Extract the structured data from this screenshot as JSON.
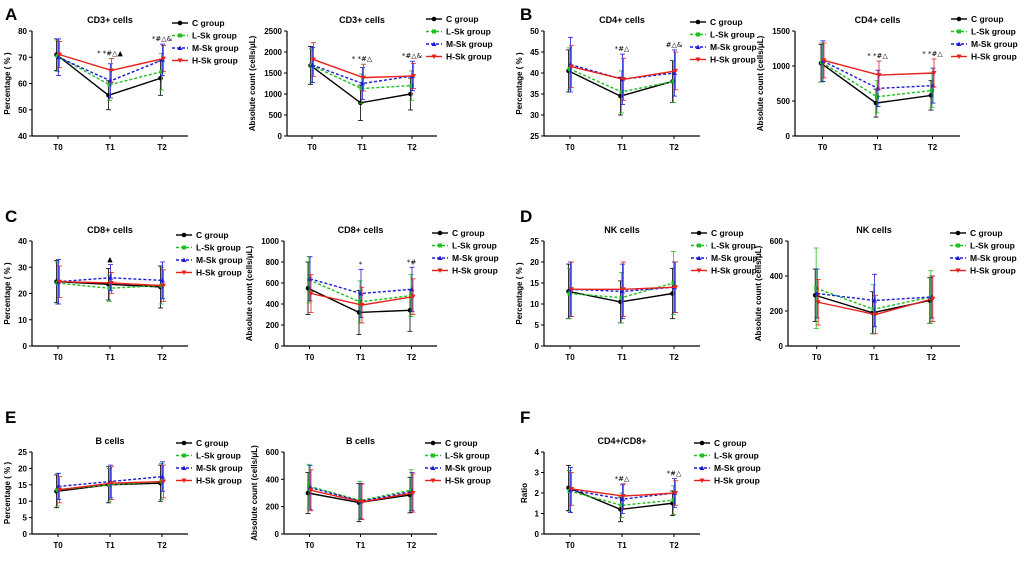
{
  "colors": {
    "C": "#000000",
    "L": "#1fbf1f",
    "M": "#1a1ad6",
    "H": "#e8201a"
  },
  "legend": [
    {
      "key": "C",
      "label": "C  group",
      "dash": ""
    },
    {
      "key": "L",
      "label": "L-Sk group",
      "dash": "3,2"
    },
    {
      "key": "M",
      "label": "M-Sk group",
      "dash": "3,2"
    },
    {
      "key": "H",
      "label": "H-Sk group",
      "dash": ""
    }
  ],
  "panel_labels": [
    "A",
    "B",
    "C",
    "D",
    "E",
    "F"
  ],
  "chart_data": [
    {
      "id": "A1",
      "type": "line",
      "title": "CD3+  cells",
      "ylabel": "Percentage ( % )",
      "xlabel": "",
      "categories": [
        "T0",
        "T1",
        "T2"
      ],
      "ylim": [
        40,
        80
      ],
      "yticks": [
        40,
        50,
        60,
        70,
        80
      ],
      "series": [
        {
          "name": "C  group",
          "key": "C",
          "values": [
            71,
            55.5,
            62
          ],
          "err": [
            6,
            5.5,
            6.5
          ]
        },
        {
          "name": "L-Sk group",
          "key": "L",
          "values": [
            70.5,
            59.5,
            64.5
          ],
          "err": [
            6,
            6,
            7
          ]
        },
        {
          "name": "M-Sk group",
          "key": "M",
          "values": [
            70,
            61,
            69
          ],
          "err": [
            7,
            6.5,
            6
          ]
        },
        {
          "name": "H-Sk group",
          "key": "H",
          "values": [
            71,
            65,
            69.5
          ],
          "err": [
            5,
            4.5,
            5
          ]
        }
      ],
      "annotations": [
        "",
        "* *#△▲",
        "*#△&"
      ]
    },
    {
      "id": "A2",
      "type": "line",
      "title": "CD3+  cells",
      "ylabel": "Absolute count (cells/μL)",
      "xlabel": "",
      "categories": [
        "T0",
        "T1",
        "T2"
      ],
      "ylim": [
        0,
        2500
      ],
      "yticks": [
        0,
        500,
        1000,
        1500,
        2000,
        2500
      ],
      "series": [
        {
          "name": "C  group",
          "key": "C",
          "values": [
            1680,
            790,
            1000
          ],
          "err": [
            450,
            420,
            380
          ]
        },
        {
          "name": "L-Sk group",
          "key": "L",
          "values": [
            1680,
            1130,
            1200
          ],
          "err": [
            400,
            350,
            350
          ]
        },
        {
          "name": "M-Sk group",
          "key": "M",
          "values": [
            1690,
            1250,
            1430
          ],
          "err": [
            420,
            380,
            350
          ]
        },
        {
          "name": "H-Sk group",
          "key": "H",
          "values": [
            1820,
            1390,
            1430
          ],
          "err": [
            400,
            320,
            300
          ]
        }
      ],
      "annotations": [
        "",
        "* *#△",
        "*#△&"
      ]
    },
    {
      "id": "B1",
      "type": "line",
      "title": "CD4+  cells",
      "ylabel": "Percentage ( % )",
      "xlabel": "",
      "categories": [
        "T0",
        "T1",
        "T2"
      ],
      "ylim": [
        25,
        50
      ],
      "yticks": [
        25,
        30,
        35,
        40,
        45,
        50
      ],
      "series": [
        {
          "name": "C  group",
          "key": "C",
          "values": [
            40.5,
            34.5,
            38
          ],
          "err": [
            5,
            4.5,
            5
          ]
        },
        {
          "name": "L-Sk group",
          "key": "L",
          "values": [
            41,
            35.5,
            38
          ],
          "err": [
            5,
            5,
            5
          ]
        },
        {
          "name": "M-Sk group",
          "key": "M",
          "values": [
            42,
            38.5,
            40
          ],
          "err": [
            6.5,
            6,
            5.5
          ]
        },
        {
          "name": "H-Sk group",
          "key": "H",
          "values": [
            41.5,
            38.5,
            40.5
          ],
          "err": [
            5,
            5,
            4.5
          ]
        }
      ],
      "annotations": [
        "",
        "*#△",
        "#△&"
      ]
    },
    {
      "id": "B2",
      "type": "line",
      "title": "CD4+  cells",
      "ylabel": "Absolute count (cells/μL)",
      "xlabel": "",
      "categories": [
        "T0",
        "T1",
        "T2"
      ],
      "ylim": [
        0,
        1500
      ],
      "yticks": [
        0,
        500,
        1000,
        1500
      ],
      "series": [
        {
          "name": "C  group",
          "key": "C",
          "values": [
            1040,
            470,
            580
          ],
          "err": [
            270,
            200,
            210
          ]
        },
        {
          "name": "L-Sk group",
          "key": "L",
          "values": [
            1050,
            560,
            650
          ],
          "err": [
            280,
            230,
            240
          ]
        },
        {
          "name": "M-Sk group",
          "key": "M",
          "values": [
            1070,
            680,
            720
          ],
          "err": [
            290,
            260,
            250
          ]
        },
        {
          "name": "H-Sk group",
          "key": "H",
          "values": [
            1080,
            870,
            900
          ],
          "err": [
            250,
            200,
            200
          ]
        }
      ],
      "annotations": [
        "",
        "* *#△",
        "* *#△"
      ]
    },
    {
      "id": "C1",
      "type": "line",
      "title": "CD8+  cells",
      "ylabel": "Percentage ( % )",
      "xlabel": "",
      "categories": [
        "T0",
        "T1",
        "T2"
      ],
      "ylim": [
        0,
        40
      ],
      "yticks": [
        0,
        10,
        20,
        30,
        40
      ],
      "series": [
        {
          "name": "C  group",
          "key": "C",
          "values": [
            24.5,
            23.5,
            22.5
          ],
          "err": [
            8,
            6,
            8
          ]
        },
        {
          "name": "L-Sk group",
          "key": "L",
          "values": [
            24,
            22,
            23
          ],
          "err": [
            8,
            5,
            7
          ]
        },
        {
          "name": "M-Sk group",
          "key": "M",
          "values": [
            24.5,
            26,
            25
          ],
          "err": [
            8.5,
            5,
            7
          ]
        },
        {
          "name": "H-Sk group",
          "key": "H",
          "values": [
            24.5,
            24,
            23
          ],
          "err": [
            6,
            4,
            6
          ]
        }
      ],
      "annotations": [
        "",
        "▲",
        ""
      ]
    },
    {
      "id": "C2",
      "type": "line",
      "title": "CD8+  cells",
      "ylabel": "Absolute count (cells/μL)",
      "xlabel": "",
      "categories": [
        "T0",
        "T1",
        "T2"
      ],
      "ylim": [
        0,
        1000
      ],
      "yticks": [
        0,
        200,
        400,
        600,
        800,
        1000
      ],
      "series": [
        {
          "name": "C  group",
          "key": "C",
          "values": [
            550,
            320,
            340
          ],
          "err": [
            250,
            210,
            200
          ]
        },
        {
          "name": "L-Sk group",
          "key": "L",
          "values": [
            630,
            420,
            480
          ],
          "err": [
            220,
            200,
            200
          ]
        },
        {
          "name": "M-Sk group",
          "key": "M",
          "values": [
            640,
            500,
            540
          ],
          "err": [
            210,
            230,
            210
          ]
        },
        {
          "name": "H-Sk group",
          "key": "H",
          "values": [
            500,
            390,
            470
          ],
          "err": [
            180,
            170,
            170
          ]
        }
      ],
      "annotations": [
        "",
        "*",
        "*#"
      ]
    },
    {
      "id": "D1",
      "type": "line",
      "title": "NK  cells",
      "ylabel": "Percentage ( % )",
      "xlabel": "",
      "categories": [
        "T0",
        "T1",
        "T2"
      ],
      "ylim": [
        0,
        25
      ],
      "yticks": [
        0,
        5,
        10,
        15,
        20,
        25
      ],
      "series": [
        {
          "name": "C  group",
          "key": "C",
          "values": [
            13,
            10.5,
            12.5
          ],
          "err": [
            6.5,
            5,
            6
          ]
        },
        {
          "name": "L-Sk group",
          "key": "L",
          "values": [
            12.5,
            11.5,
            15
          ],
          "err": [
            6,
            6,
            7.5
          ]
        },
        {
          "name": "M-Sk group",
          "key": "M",
          "values": [
            13.5,
            13,
            14
          ],
          "err": [
            6.5,
            6.5,
            6
          ]
        },
        {
          "name": "H-Sk group",
          "key": "H",
          "values": [
            13.5,
            13.5,
            14
          ],
          "err": [
            6.5,
            6.5,
            6
          ]
        }
      ],
      "annotations": [
        "",
        "",
        ""
      ]
    },
    {
      "id": "D2",
      "type": "line",
      "title": "NK  cells",
      "ylabel": "Absolute count (cells/μL)",
      "xlabel": "",
      "categories": [
        "T0",
        "T1",
        "T2"
      ],
      "ylim": [
        0,
        600
      ],
      "yticks": [
        0,
        200,
        400,
        600
      ],
      "series": [
        {
          "name": "C  group",
          "key": "C",
          "values": [
            290,
            190,
            260
          ],
          "err": [
            150,
            120,
            130
          ]
        },
        {
          "name": "L-Sk group",
          "key": "L",
          "values": [
            330,
            210,
            280
          ],
          "err": [
            230,
            140,
            150
          ]
        },
        {
          "name": "M-Sk group",
          "key": "M",
          "values": [
            300,
            260,
            280
          ],
          "err": [
            140,
            150,
            120
          ]
        },
        {
          "name": "H-Sk group",
          "key": "H",
          "values": [
            250,
            180,
            270
          ],
          "err": [
            130,
            110,
            130
          ]
        }
      ],
      "annotations": [
        "",
        "",
        ""
      ]
    },
    {
      "id": "E1",
      "type": "line",
      "title": "B  cells",
      "ylabel": "Percentage ( % )",
      "xlabel": "",
      "categories": [
        "T0",
        "T1",
        "T2"
      ],
      "ylim": [
        0,
        25
      ],
      "yticks": [
        0,
        5,
        10,
        15,
        20,
        25
      ],
      "series": [
        {
          "name": "C  group",
          "key": "C",
          "values": [
            13,
            15,
            15.5
          ],
          "err": [
            5,
            5.5,
            5.5
          ]
        },
        {
          "name": "L-Sk group",
          "key": "L",
          "values": [
            13.5,
            15,
            16
          ],
          "err": [
            5,
            5,
            5.5
          ]
        },
        {
          "name": "M-Sk group",
          "key": "M",
          "values": [
            14.5,
            16,
            17.5
          ],
          "err": [
            4,
            5,
            4.5
          ]
        },
        {
          "name": "H-Sk group",
          "key": "H",
          "values": [
            13.5,
            15.5,
            16
          ],
          "err": [
            4,
            5,
            5
          ]
        }
      ],
      "annotations": [
        "",
        "",
        ""
      ]
    },
    {
      "id": "E2",
      "type": "line",
      "title": "B  cells",
      "ylabel": "Absolute count (cells/μL)",
      "xlabel": "",
      "categories": [
        "T0",
        "T1",
        "T2"
      ],
      "ylim": [
        0,
        600
      ],
      "yticks": [
        0,
        200,
        400,
        600
      ],
      "series": [
        {
          "name": "C  group",
          "key": "C",
          "values": [
            300,
            230,
            285
          ],
          "err": [
            150,
            140,
            130
          ]
        },
        {
          "name": "L-Sk group",
          "key": "L",
          "values": [
            350,
            245,
            320
          ],
          "err": [
            160,
            140,
            150
          ]
        },
        {
          "name": "M-Sk group",
          "key": "M",
          "values": [
            340,
            240,
            310
          ],
          "err": [
            160,
            130,
            140
          ]
        },
        {
          "name": "H-Sk group",
          "key": "H",
          "values": [
            320,
            235,
            300
          ],
          "err": [
            150,
            130,
            140
          ]
        }
      ],
      "annotations": [
        "",
        "",
        ""
      ]
    },
    {
      "id": "F1",
      "type": "line",
      "title": "CD4+/CD8+",
      "ylabel": "Ratio",
      "xlabel": "",
      "categories": [
        "T0",
        "T1",
        "T2"
      ],
      "ylim": [
        0,
        4
      ],
      "yticks": [
        0,
        1,
        2,
        3,
        4
      ],
      "series": [
        {
          "name": "C  group",
          "key": "C",
          "values": [
            2.25,
            1.2,
            1.5
          ],
          "err": [
            1.1,
            0.6,
            0.6
          ]
        },
        {
          "name": "L-Sk group",
          "key": "L",
          "values": [
            2.1,
            1.4,
            1.65
          ],
          "err": [
            1,
            0.6,
            0.7
          ]
        },
        {
          "name": "M-Sk group",
          "key": "M",
          "values": [
            2.15,
            1.7,
            2
          ],
          "err": [
            1.1,
            0.7,
            0.7
          ]
        },
        {
          "name": "H-Sk group",
          "key": "H",
          "values": [
            2.2,
            1.85,
            2
          ],
          "err": [
            0.8,
            0.6,
            0.6
          ]
        }
      ],
      "annotations": [
        "",
        "*#△",
        "*#△"
      ]
    }
  ]
}
